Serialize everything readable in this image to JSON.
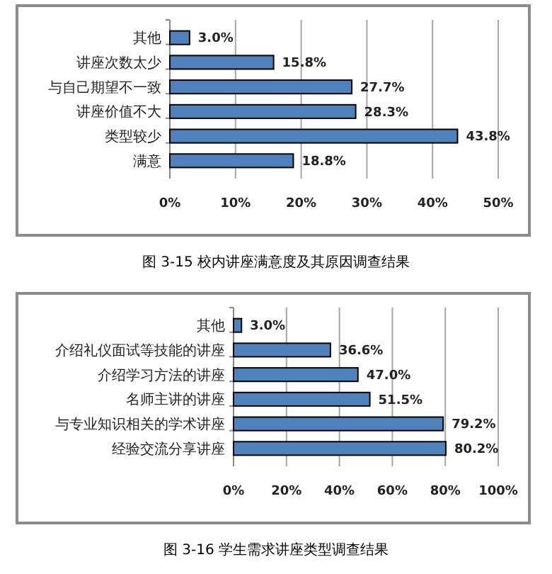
{
  "chart_data": [
    {
      "type": "bar",
      "orientation": "horizontal",
      "categories": [
        "其他",
        "讲座次数太少",
        "与自己期望不一致",
        "讲座价值不大",
        "类型较少",
        "满意"
      ],
      "values": [
        3.0,
        15.8,
        27.7,
        28.3,
        43.8,
        18.8
      ],
      "color": "#4f81bd",
      "value_labels": [
        "3.0%",
        "15.8%",
        "27.7%",
        "28.3%",
        "43.8%",
        "18.8%"
      ],
      "xlim": [
        0,
        50
      ],
      "xticks": [
        {
          "value": 0,
          "label": "0%"
        },
        {
          "value": 10,
          "label": "10%"
        },
        {
          "value": 20,
          "label": "20%"
        },
        {
          "value": 30,
          "label": "30%"
        },
        {
          "value": 40,
          "label": "40%"
        },
        {
          "value": 50,
          "label": "50%"
        }
      ],
      "grid": "x",
      "annotations": [
        "图 3-15 校内讲座满意度及其原因调查结果"
      ]
    },
    {
      "type": "bar",
      "orientation": "horizontal",
      "categories": [
        "其他",
        "介绍礼仪面试等技能的讲座",
        "介绍学习方法的讲座",
        "名师主讲的讲座",
        "与专业知识相关的学术讲座",
        "经验交流分享讲座"
      ],
      "values": [
        3.0,
        36.6,
        47.0,
        51.5,
        79.2,
        80.2
      ],
      "color": "#4f81bd",
      "value_labels": [
        "3.0%",
        "36.6%",
        "47.0%",
        "51.5%",
        "79.2%",
        "80.2%"
      ],
      "xlim": [
        0,
        100
      ],
      "xticks": [
        {
          "value": 0,
          "label": "0%"
        },
        {
          "value": 20,
          "label": "20%"
        },
        {
          "value": 40,
          "label": "40%"
        },
        {
          "value": 60,
          "label": "60%"
        },
        {
          "value": 80,
          "label": "80%"
        },
        {
          "value": 100,
          "label": "100%"
        }
      ],
      "grid": "x",
      "annotations": [
        "图 3-16 学生需求讲座类型调查结果"
      ]
    }
  ]
}
